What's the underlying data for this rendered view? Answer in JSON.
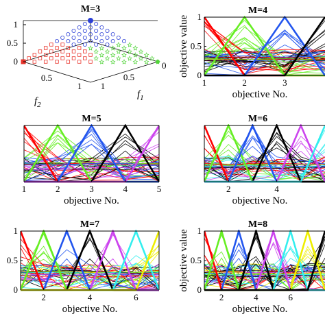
{
  "chart_data": [
    {
      "id": "m3",
      "type": "scatter3d",
      "title": "M=3",
      "xlabel": "f",
      "xlabel_sub": "2",
      "ylabel": "f",
      "ylabel_sub": "1",
      "zticks": [
        "0",
        "0.5",
        "1"
      ],
      "xticks": [
        "0.5",
        "1"
      ],
      "yticks": [
        "0",
        "0.5",
        "1"
      ],
      "zlim": [
        0,
        1
      ],
      "points_per_edge": 12,
      "regions": [
        {
          "marker": "circle",
          "color": "#2b3fd6"
        },
        {
          "marker": "square",
          "color": "#e8332a"
        },
        {
          "marker": "star",
          "color": "#52d43a"
        }
      ]
    },
    {
      "id": "m4",
      "type": "line",
      "title": "M=4",
      "M": 4,
      "xlabel": "objective No.",
      "ylabel": "objective value",
      "xticks": [
        "1",
        "2",
        "3"
      ],
      "yticks": [
        "0",
        "0.5",
        "1"
      ],
      "xlim": [
        1,
        4
      ],
      "ylim": [
        0,
        1
      ],
      "colors": [
        "#ff0000",
        "#66ee22",
        "#2255ee",
        "#000000"
      ]
    },
    {
      "id": "m5",
      "type": "line",
      "title": "M=5",
      "M": 5,
      "xlabel": "objective No.",
      "ylabel": "",
      "xticks": [
        "1",
        "2",
        "3",
        "4",
        "5"
      ],
      "yticks": [],
      "xlim": [
        1,
        5
      ],
      "ylim": [
        0,
        1
      ],
      "colors": [
        "#ff0000",
        "#66ee22",
        "#2255ee",
        "#000000",
        "#cc44ee"
      ]
    },
    {
      "id": "m6",
      "type": "line",
      "title": "M=6",
      "M": 6,
      "xlabel": "objective No.",
      "ylabel": "",
      "xticks": [
        "2",
        "4"
      ],
      "yticks": [],
      "xlim": [
        1,
        6
      ],
      "ylim": [
        0,
        1
      ],
      "colors": [
        "#ff0000",
        "#66ee22",
        "#2255ee",
        "#000000",
        "#cc44ee",
        "#33eeee"
      ]
    },
    {
      "id": "m7",
      "type": "line",
      "title": "M=7",
      "M": 7,
      "xlabel": "objective No.",
      "ylabel": "",
      "xticks": [
        "2",
        "4",
        "6"
      ],
      "yticks": [
        "0",
        "0.5",
        "1"
      ],
      "xlim": [
        1,
        7
      ],
      "ylim": [
        0,
        1
      ],
      "colors": [
        "#ff0000",
        "#66ee22",
        "#2255ee",
        "#000000",
        "#cc44ee",
        "#33eeee",
        "#eeee00"
      ]
    },
    {
      "id": "m8",
      "type": "line",
      "title": "M=8",
      "M": 8,
      "xlabel": "objective No.",
      "ylabel": "objective value",
      "xticks": [
        "2",
        "4",
        "6"
      ],
      "yticks": [
        "0",
        "0.5",
        "1"
      ],
      "xlim": [
        1,
        8
      ],
      "ylim": [
        0,
        1
      ],
      "colors": [
        "#ff0000",
        "#66ee22",
        "#2255ee",
        "#000000",
        "#cc44ee",
        "#33eeee",
        "#eeee00",
        "#000000"
      ]
    }
  ]
}
